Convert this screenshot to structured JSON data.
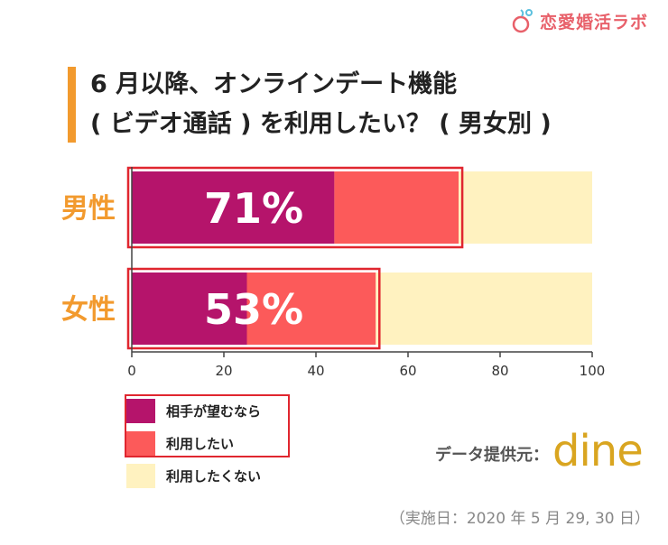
{
  "brand": {
    "name": "恋愛婚活ラボ"
  },
  "title": {
    "line1": "6 月以降、オンラインデート機能",
    "line2": "( ビデオ通話 ) を利用したい？ ( 男女別 )"
  },
  "chart_data": {
    "type": "bar",
    "orientation": "horizontal",
    "stacked": true,
    "categories": [
      "男性",
      "女性"
    ],
    "series": [
      {
        "name": "相手が望むなら",
        "values": [
          44,
          25
        ],
        "color": "#b5146b"
      },
      {
        "name": "利用したい",
        "values": [
          27,
          28
        ],
        "color": "#fc5a5a"
      },
      {
        "name": "利用したくない",
        "values": [
          29,
          47
        ],
        "color": "#fff2c0"
      }
    ],
    "totals_label": [
      "71%",
      "53%"
    ],
    "highlight_totals": [
      71,
      53
    ],
    "xlim": [
      0,
      100
    ],
    "xticks": [
      0,
      20,
      40,
      60,
      80,
      100
    ],
    "xlabel": "",
    "ylabel": "",
    "legend_position": "bottom-left",
    "highlight_color": "#e0262f",
    "label_color": "#f29a2e"
  },
  "source": {
    "label": "データ提供元：",
    "logo": "dine"
  },
  "note": "（実施日：2020 年 5 月 29, 30 日）"
}
